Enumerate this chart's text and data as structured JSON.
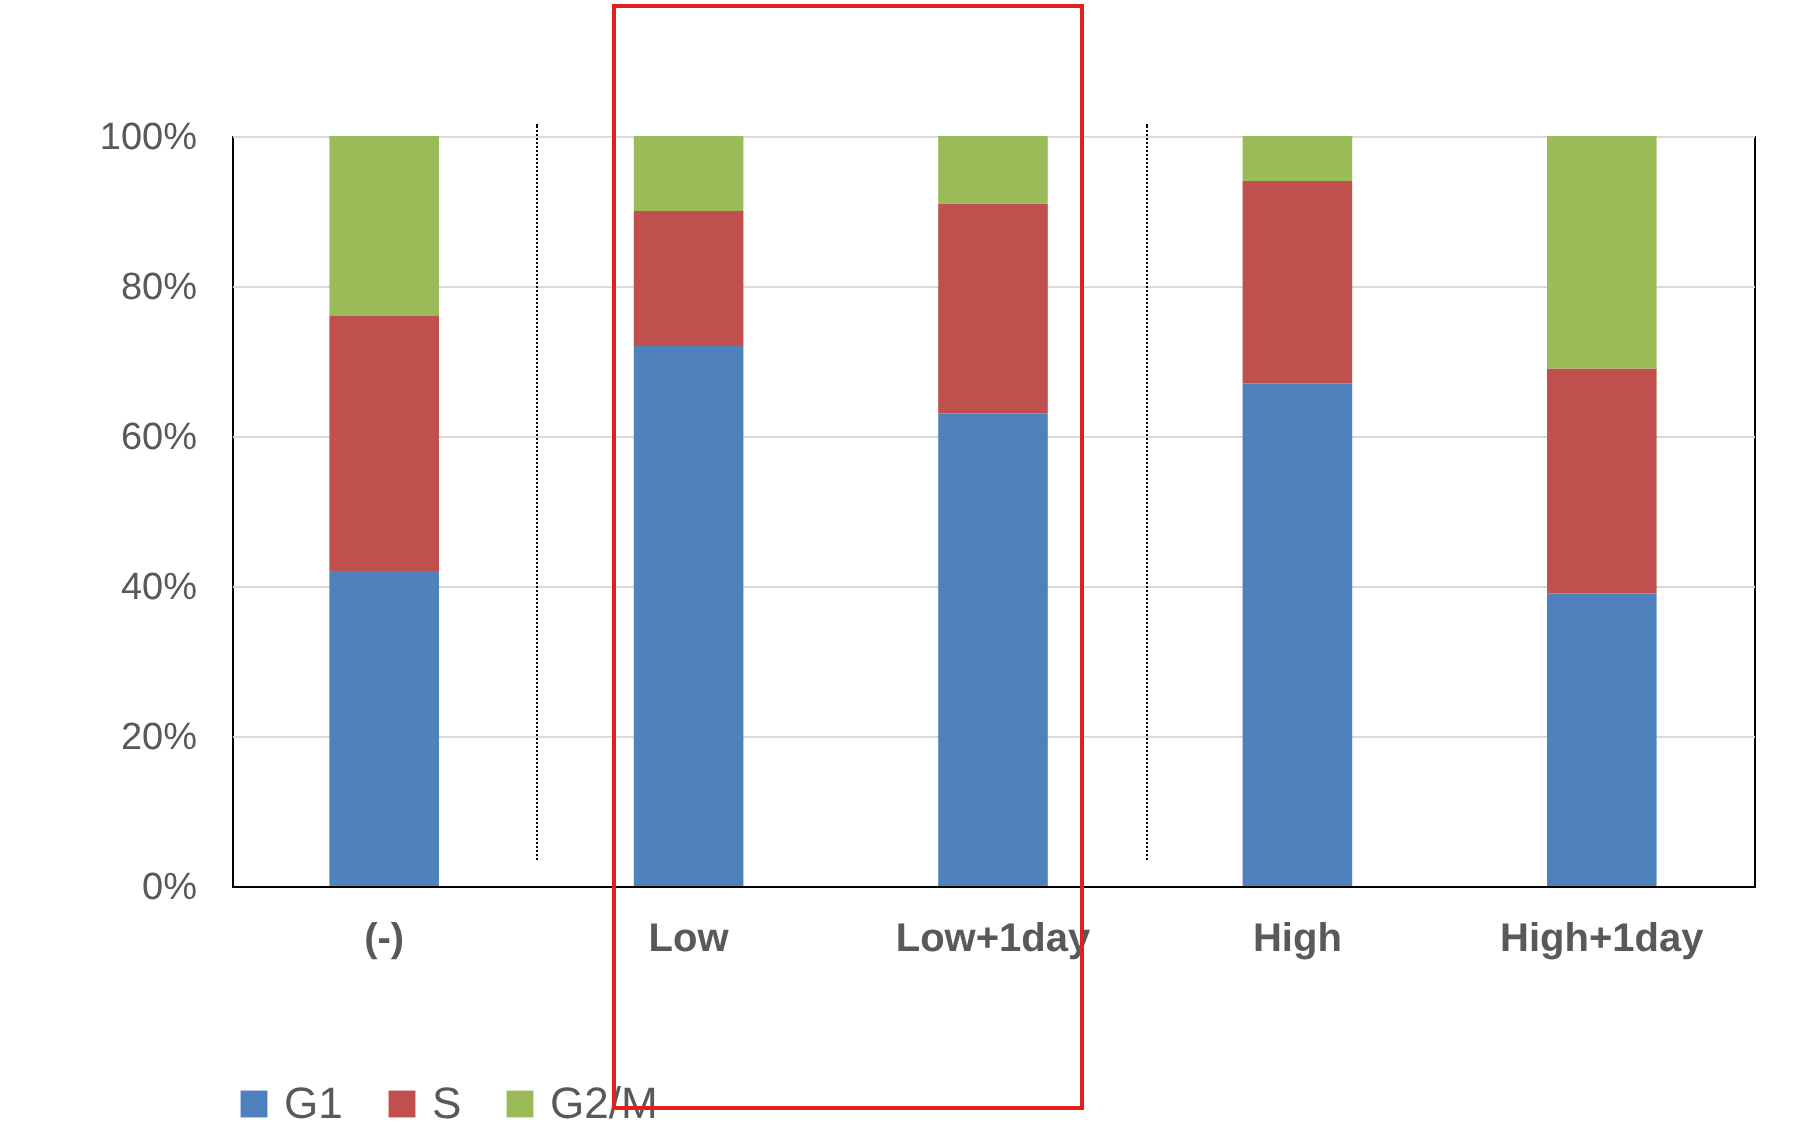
{
  "chart_data": {
    "type": "bar",
    "stacked": true,
    "categories": [
      "(-)",
      "Low",
      "Low+1day",
      "High",
      "High+1day"
    ],
    "series": [
      {
        "name": "G1",
        "color": "#4f81bd",
        "values": [
          42,
          72,
          63,
          67,
          39
        ]
      },
      {
        "name": "S",
        "color": "#c0504d",
        "values": [
          34,
          18,
          28,
          27,
          30
        ]
      },
      {
        "name": "G2/M",
        "color": "#9bbb59",
        "values": [
          24,
          10,
          9,
          6,
          31
        ]
      }
    ],
    "ylim": [
      0,
      100
    ],
    "yticks": [
      {
        "value": 0,
        "label": "0%"
      },
      {
        "value": 20,
        "label": "20%"
      },
      {
        "value": 40,
        "label": "40%"
      },
      {
        "value": 60,
        "label": "60%"
      },
      {
        "value": 80,
        "label": "80%"
      },
      {
        "value": 100,
        "label": "100%"
      }
    ],
    "grid": "y",
    "legend": "bottom"
  }
}
